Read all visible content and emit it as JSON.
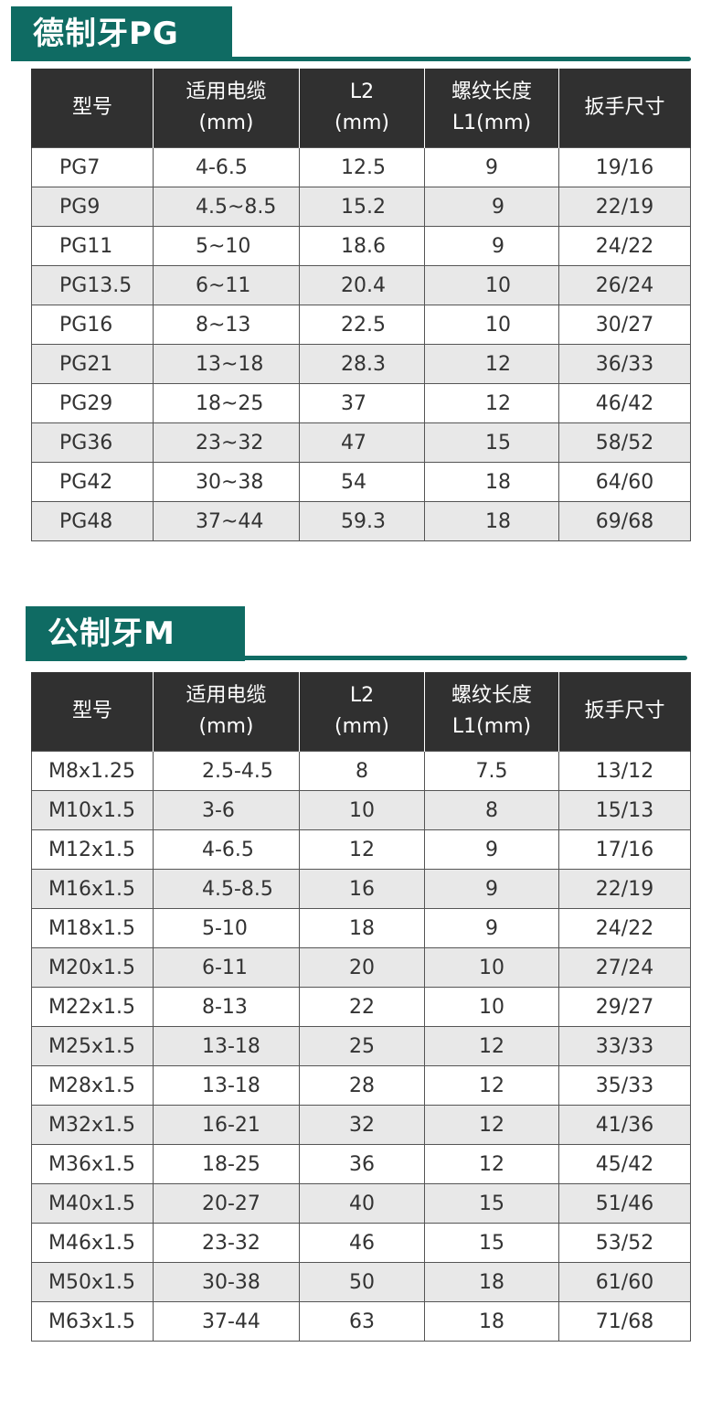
{
  "pg": {
    "title": "德制牙PG",
    "headers": [
      [
        "型号"
      ],
      [
        "适用电缆",
        "(mm)"
      ],
      [
        "L2",
        "(mm)"
      ],
      [
        "螺纹长度",
        "L1(mm)"
      ],
      [
        "扳手尺寸"
      ]
    ],
    "rows": [
      [
        "PG7",
        "4-6.5",
        "12.5",
        "9",
        "19/16"
      ],
      [
        "PG9",
        "4.5~8.5",
        "15.2",
        "9",
        "22/19"
      ],
      [
        "PG11",
        "5~10",
        "18.6",
        "9",
        "24/22"
      ],
      [
        "PG13.5",
        "6~11",
        "20.4",
        "10",
        "26/24"
      ],
      [
        "PG16",
        "8~13",
        "22.5",
        "10",
        "30/27"
      ],
      [
        "PG21",
        "13~18",
        "28.3",
        "12",
        "36/33"
      ],
      [
        "PG29",
        "18~25",
        "37",
        "12",
        "46/42"
      ],
      [
        "PG36",
        "23~32",
        "47",
        "15",
        "58/52"
      ],
      [
        "PG42",
        "30~38",
        "54",
        "18",
        "64/60"
      ],
      [
        "PG48",
        "37~44",
        "59.3",
        "18",
        "69/68"
      ]
    ]
  },
  "m": {
    "title": "公制牙M",
    "headers": [
      [
        "型号"
      ],
      [
        "适用电缆",
        "(mm)"
      ],
      [
        "L2",
        "(mm)"
      ],
      [
        "螺纹长度",
        "L1(mm)"
      ],
      [
        "扳手尺寸"
      ]
    ],
    "rows": [
      [
        "M8x1.25",
        "2.5-4.5",
        "8",
        "7.5",
        "13/12"
      ],
      [
        "M10x1.5",
        "3-6",
        "10",
        "8",
        "15/13"
      ],
      [
        "M12x1.5",
        "4-6.5",
        "12",
        "9",
        "17/16"
      ],
      [
        "M16x1.5",
        "4.5-8.5",
        "16",
        "9",
        "22/19"
      ],
      [
        "M18x1.5",
        "5-10",
        "18",
        "9",
        "24/22"
      ],
      [
        "M20x1.5",
        "6-11",
        "20",
        "10",
        "27/24"
      ],
      [
        "M22x1.5",
        "8-13",
        "22",
        "10",
        "29/27"
      ],
      [
        "M25x1.5",
        "13-18",
        "25",
        "12",
        "33/33"
      ],
      [
        "M28x1.5",
        "13-18",
        "28",
        "12",
        "35/33"
      ],
      [
        "M32x1.5",
        "16-21",
        "32",
        "12",
        "41/36"
      ],
      [
        "M36x1.5",
        "18-25",
        "36",
        "12",
        "45/42"
      ],
      [
        "M40x1.5",
        "20-27",
        "40",
        "15",
        "51/46"
      ],
      [
        "M46x1.5",
        "23-32",
        "46",
        "15",
        "53/52"
      ],
      [
        "M50x1.5",
        "30-38",
        "50",
        "18",
        "61/60"
      ],
      [
        "M63x1.5",
        "37-44",
        "63",
        "18",
        "71/68"
      ]
    ]
  },
  "colors": {
    "banner": "#0f6b63",
    "header_bg": "#303030",
    "even_row_bg": "#e8e8e8",
    "odd_row_bg": "#ffffff"
  }
}
